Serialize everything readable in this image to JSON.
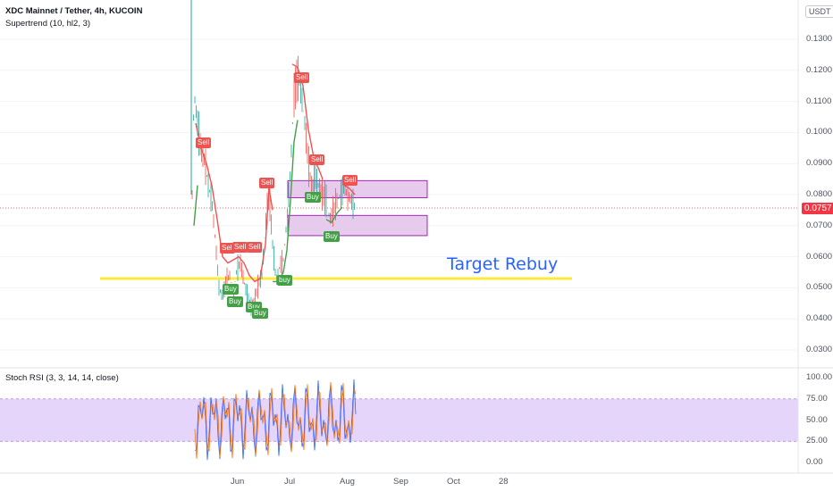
{
  "header": {
    "title": "XDC Mainnet / Tether, 4h, KUCOIN",
    "indicator": "Supertrend (10, hl2, 3)",
    "currency": "USDT"
  },
  "price_axis": {
    "labels": [
      "0.1300",
      "0.1200",
      "0.1100",
      "0.1000",
      "0.0900",
      "0.0800",
      "0.0700",
      "0.0600",
      "0.0500",
      "0.0400",
      "0.0300"
    ],
    "current_price": "0.0757"
  },
  "annotation": {
    "text": "Target Rebuy",
    "level": 0.053
  },
  "rsi_panel": {
    "title": "Stoch RSI (3, 3, 14, 14, close)",
    "labels": [
      "100.00",
      "75.00",
      "50.00",
      "25.00",
      "0.00"
    ]
  },
  "time_axis": {
    "labels": [
      "Jun",
      "Jul",
      "Aug",
      "Sep",
      "Oct",
      "28"
    ]
  },
  "signals": [
    {
      "label": "Sell",
      "type": "sell"
    },
    {
      "label": "Sell",
      "type": "sell"
    },
    {
      "label": "Sell",
      "type": "sell"
    },
    {
      "label": "Sell",
      "type": "sell"
    },
    {
      "label": "Sell",
      "type": "sell"
    },
    {
      "label": "Sell",
      "type": "sell"
    },
    {
      "label": "Sell",
      "type": "sell"
    },
    {
      "label": "Sell",
      "type": "sell"
    },
    {
      "label": "Buy",
      "type": "buy"
    },
    {
      "label": "Buy",
      "type": "buy"
    },
    {
      "label": "Buy",
      "type": "buy"
    },
    {
      "label": "Buy",
      "type": "buy"
    },
    {
      "label": "buy",
      "type": "buy"
    },
    {
      "label": "Buy",
      "type": "buy"
    },
    {
      "label": "Buy",
      "type": "buy"
    }
  ],
  "colors": {
    "up": "#26a69a",
    "down": "#ef5350",
    "supertrend_up": "#43a047",
    "supertrend_down": "#ef5350",
    "target_line": "#ffeb3b",
    "zone_fill": "#e1bee7",
    "zone_border": "#9c27b0",
    "rsi_band": "#e6d5fb",
    "rsi_k": "#2962ff",
    "rsi_d": "#ff6d00"
  }
}
